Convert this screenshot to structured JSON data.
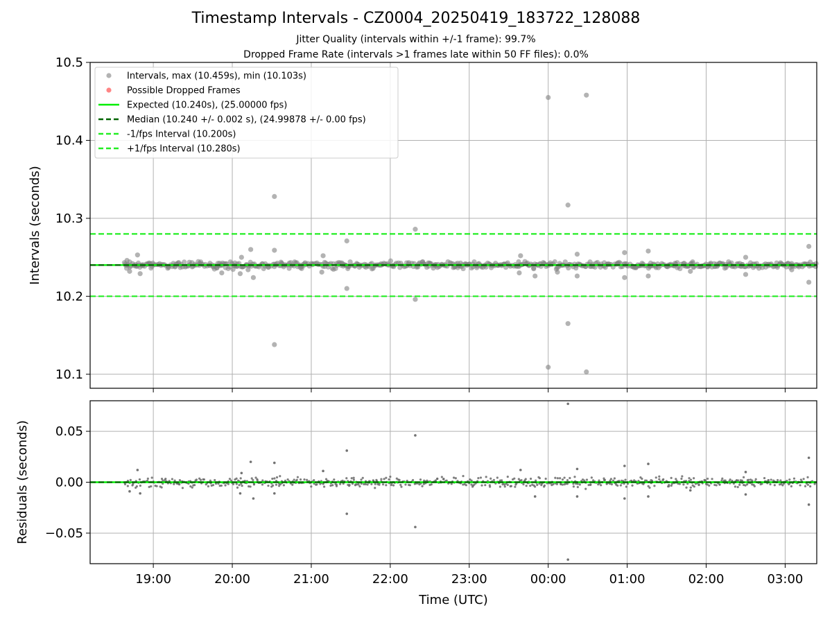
{
  "title": "Timestamp Intervals - CZ0004_20250419_183722_128088",
  "subtitle_jitter": "Jitter Quality (intervals within +/-1 frame): 99.7%",
  "subtitle_dropped": "Dropped Frame Rate (intervals >1 frames late within 50 FF files): 0.0%",
  "colors": {
    "points": "#808080",
    "residual_points": "#6a6a6a",
    "dropped": "#ff6666",
    "expected": "#00ee00",
    "median": "#006400",
    "bounds": "#22ee22",
    "grid": "#b0b0b0"
  },
  "legend": {
    "position": "upper-left",
    "items": [
      {
        "label": "Intervals, max (10.459s), min (10.103s)",
        "kind": "marker",
        "color": "#a0a0a0"
      },
      {
        "label": "Possible Dropped Frames",
        "kind": "marker",
        "color": "#ff6666"
      },
      {
        "label": "Expected (10.240s), (25.00000 fps)",
        "kind": "solid",
        "color": "#00ee00"
      },
      {
        "label": "Median (10.240 +/- 0.002 s), (24.99878 +/- 0.00 fps)",
        "kind": "dashed",
        "color": "#006400"
      },
      {
        "label": "-1/fps Interval (10.200s)",
        "kind": "dashed",
        "color": "#22ee22"
      },
      {
        "label": "+1/fps Interval (10.280s)",
        "kind": "dashed",
        "color": "#22ee22"
      }
    ]
  },
  "chart_data": [
    {
      "type": "scatter",
      "name": "intervals",
      "ylabel": "Intervals (seconds)",
      "xlim": [
        "18:12",
        "03:24"
      ],
      "ylim": [
        10.082,
        10.5
      ],
      "yticks": [
        10.1,
        10.2,
        10.3,
        10.4,
        10.5
      ],
      "ytick_labels": [
        "10.1",
        "10.2",
        "10.3",
        "10.4",
        "10.5"
      ],
      "grid": true,
      "hlines": [
        {
          "y": 10.24,
          "style": "solid",
          "color": "#00ee00"
        },
        {
          "y": 10.24,
          "style": "dashed",
          "color": "#006400"
        },
        {
          "y": 10.2,
          "style": "dashed",
          "color": "#22ee22"
        },
        {
          "y": 10.28,
          "style": "dashed",
          "color": "#22ee22"
        }
      ],
      "dense_band": {
        "x_range": [
          "18:38",
          "03:24"
        ],
        "y_range": [
          10.234,
          10.246
        ]
      },
      "points": [
        {
          "x": "18:40",
          "y": 10.246
        },
        {
          "x": "18:42",
          "y": 10.232
        },
        {
          "x": "18:48",
          "y": 10.253
        },
        {
          "x": "18:50",
          "y": 10.229
        },
        {
          "x": "19:52",
          "y": 10.23
        },
        {
          "x": "20:06",
          "y": 10.229
        },
        {
          "x": "20:07",
          "y": 10.25
        },
        {
          "x": "20:14",
          "y": 10.26
        },
        {
          "x": "20:16",
          "y": 10.224
        },
        {
          "x": "20:12",
          "y": 10.234
        },
        {
          "x": "20:32",
          "y": 10.328
        },
        {
          "x": "20:32",
          "y": 10.259
        },
        {
          "x": "20:32",
          "y": 10.138
        },
        {
          "x": "21:08",
          "y": 10.231
        },
        {
          "x": "21:09",
          "y": 10.252
        },
        {
          "x": "21:27",
          "y": 10.271
        },
        {
          "x": "21:27",
          "y": 10.21
        },
        {
          "x": "22:19",
          "y": 10.286
        },
        {
          "x": "22:19",
          "y": 10.196
        },
        {
          "x": "23:39",
          "y": 10.252
        },
        {
          "x": "23:38",
          "y": 10.23
        },
        {
          "x": "23:50",
          "y": 10.226
        },
        {
          "x": "00:00",
          "y": 10.455
        },
        {
          "x": "00:00",
          "y": 10.109
        },
        {
          "x": "00:07",
          "y": 10.231
        },
        {
          "x": "00:15",
          "y": 10.317
        },
        {
          "x": "00:15",
          "y": 10.165
        },
        {
          "x": "00:22",
          "y": 10.254
        },
        {
          "x": "00:22",
          "y": 10.226
        },
        {
          "x": "00:29",
          "y": 10.458
        },
        {
          "x": "00:29",
          "y": 10.103
        },
        {
          "x": "00:58",
          "y": 10.256
        },
        {
          "x": "00:58",
          "y": 10.224
        },
        {
          "x": "01:16",
          "y": 10.258
        },
        {
          "x": "01:16",
          "y": 10.226
        },
        {
          "x": "01:48",
          "y": 10.232
        },
        {
          "x": "02:30",
          "y": 10.25
        },
        {
          "x": "02:30",
          "y": 10.228
        },
        {
          "x": "03:05",
          "y": 10.234
        },
        {
          "x": "03:18",
          "y": 10.264
        },
        {
          "x": "03:18",
          "y": 10.218
        }
      ]
    },
    {
      "type": "scatter",
      "name": "residuals",
      "ylabel": "Residuals (seconds)",
      "xlabel": "Time (UTC)",
      "xlim": [
        "18:12",
        "03:24"
      ],
      "ylim": [
        -0.08,
        0.08
      ],
      "yticks": [
        -0.05,
        0.0,
        0.05
      ],
      "ytick_labels": [
        "−0.05",
        "0.00",
        "0.05"
      ],
      "xticks": [
        "19:00",
        "20:00",
        "21:00",
        "22:00",
        "23:00",
        "00:00",
        "01:00",
        "02:00",
        "03:00"
      ],
      "grid": true,
      "hlines": [
        {
          "y": 0.0,
          "style": "solid",
          "color": "#00ee00"
        },
        {
          "y": 0.0,
          "style": "dashed",
          "color": "#006400"
        }
      ],
      "dense_band": {
        "x_range": [
          "18:38",
          "03:24"
        ],
        "y_range": [
          -0.007,
          0.007
        ]
      },
      "points": [
        {
          "x": "18:48",
          "y": 0.012
        },
        {
          "x": "18:50",
          "y": -0.011
        },
        {
          "x": "18:42",
          "y": -0.009
        },
        {
          "x": "20:14",
          "y": 0.02
        },
        {
          "x": "20:16",
          "y": -0.016
        },
        {
          "x": "20:06",
          "y": -0.011
        },
        {
          "x": "20:07",
          "y": 0.009
        },
        {
          "x": "20:32",
          "y": 0.019
        },
        {
          "x": "20:32",
          "y": -0.011
        },
        {
          "x": "21:27",
          "y": 0.031
        },
        {
          "x": "21:27",
          "y": -0.031
        },
        {
          "x": "21:09",
          "y": 0.011
        },
        {
          "x": "22:19",
          "y": 0.046
        },
        {
          "x": "22:19",
          "y": -0.044
        },
        {
          "x": "23:39",
          "y": 0.012
        },
        {
          "x": "23:50",
          "y": -0.014
        },
        {
          "x": "00:15",
          "y": 0.077
        },
        {
          "x": "00:15",
          "y": -0.076
        },
        {
          "x": "00:22",
          "y": 0.013
        },
        {
          "x": "00:22",
          "y": -0.014
        },
        {
          "x": "00:58",
          "y": 0.016
        },
        {
          "x": "00:58",
          "y": -0.016
        },
        {
          "x": "01:16",
          "y": 0.018
        },
        {
          "x": "01:16",
          "y": -0.014
        },
        {
          "x": "01:48",
          "y": -0.008
        },
        {
          "x": "02:30",
          "y": 0.01
        },
        {
          "x": "02:30",
          "y": -0.012
        },
        {
          "x": "03:18",
          "y": 0.024
        },
        {
          "x": "03:18",
          "y": -0.022
        }
      ]
    }
  ]
}
